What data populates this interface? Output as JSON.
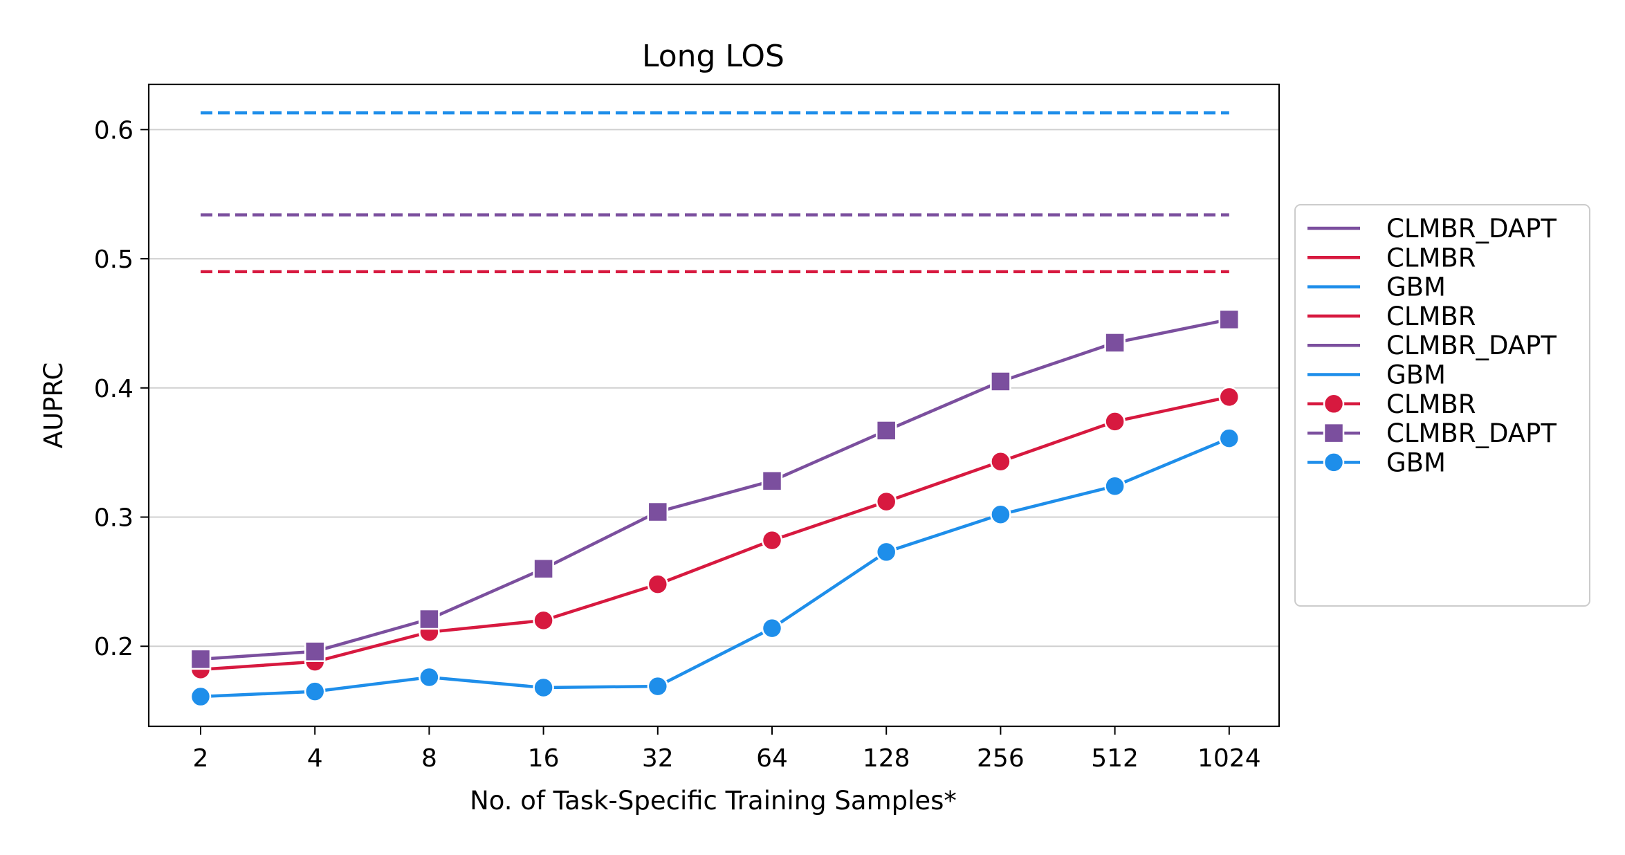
{
  "chart_data": {
    "type": "line",
    "title": "Long LOS",
    "xlabel": "No. of Task-Specific Training Samples*",
    "ylabel": "AUPRC",
    "categories": [
      "2",
      "4",
      "8",
      "16",
      "32",
      "64",
      "128",
      "256",
      "512",
      "1024"
    ],
    "yticks": [
      "0.2",
      "0.3",
      "0.4",
      "0.5",
      "0.6"
    ],
    "ylim": [
      0.138,
      0.635
    ],
    "grid": "horizontal",
    "legend_placement": "outside-right",
    "baselines": [
      {
        "name": "CLMBR_DAPT",
        "value": 0.534,
        "color": "#7B4F9E",
        "style": "dashed"
      },
      {
        "name": "CLMBR",
        "value": 0.49,
        "color": "#D7193F",
        "style": "dashed"
      },
      {
        "name": "GBM",
        "value": 0.613,
        "color": "#1E8EEA",
        "style": "dashed"
      }
    ],
    "series": [
      {
        "name": "CLMBR",
        "color": "#D7193F",
        "marker": "circle",
        "values": [
          0.182,
          0.188,
          0.211,
          0.22,
          0.248,
          0.282,
          0.312,
          0.343,
          0.374,
          0.393
        ]
      },
      {
        "name": "CLMBR_DAPT",
        "color": "#7B4F9E",
        "marker": "square",
        "values": [
          0.19,
          0.196,
          0.221,
          0.26,
          0.304,
          0.328,
          0.367,
          0.405,
          0.435,
          0.453
        ]
      },
      {
        "name": "GBM",
        "color": "#1E8EEA",
        "marker": "circle",
        "values": [
          0.161,
          0.165,
          0.176,
          0.168,
          0.169,
          0.214,
          0.273,
          0.302,
          0.324,
          0.361
        ]
      }
    ],
    "legend": [
      {
        "label": "CLMBR_DAPT",
        "color": "#7B4F9E",
        "marker": "none"
      },
      {
        "label": "CLMBR",
        "color": "#D7193F",
        "marker": "none"
      },
      {
        "label": "GBM",
        "color": "#1E8EEA",
        "marker": "none"
      },
      {
        "label": "CLMBR",
        "color": "#D7193F",
        "marker": "none"
      },
      {
        "label": "CLMBR_DAPT",
        "color": "#7B4F9E",
        "marker": "none"
      },
      {
        "label": "GBM",
        "color": "#1E8EEA",
        "marker": "none"
      },
      {
        "label": "CLMBR",
        "color": "#D7193F",
        "marker": "circle"
      },
      {
        "label": "CLMBR_DAPT",
        "color": "#7B4F9E",
        "marker": "square"
      },
      {
        "label": "GBM",
        "color": "#1E8EEA",
        "marker": "circle"
      }
    ]
  }
}
